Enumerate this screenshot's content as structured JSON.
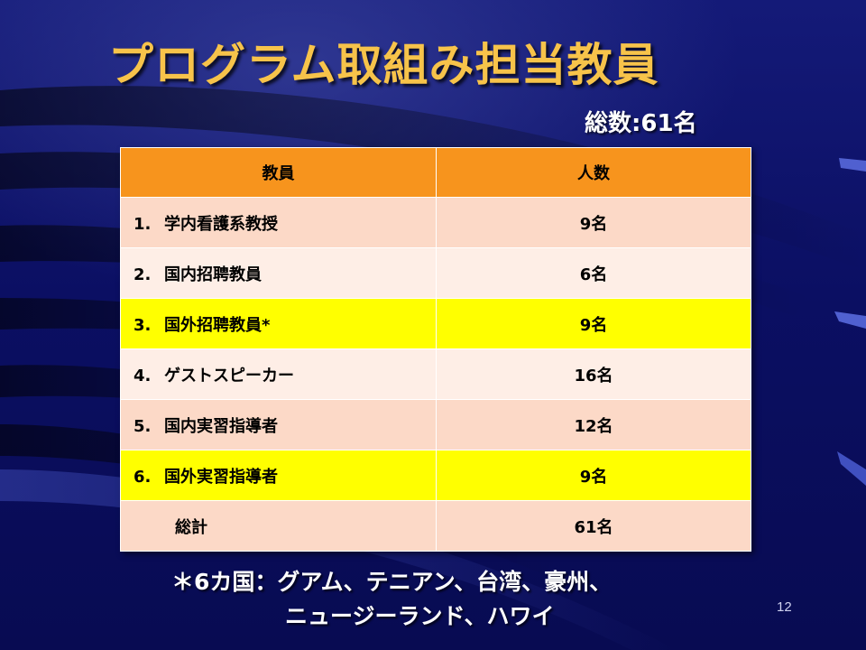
{
  "slide": {
    "title": "プログラム取組み担当教員",
    "total": "総数:61名",
    "table": {
      "headers": [
        "教員",
        "人数"
      ],
      "rows": [
        {
          "no": "1.",
          "label": "学内看護系教授",
          "count": "9名",
          "highlight": false
        },
        {
          "no": "2.",
          "label": "国内招聘教員",
          "count": "6名",
          "highlight": false
        },
        {
          "no": "3.",
          "label": "国外招聘教員*",
          "count": "9名",
          "highlight": true
        },
        {
          "no": "4.",
          "label": "ゲストスピーカー",
          "count": "16名",
          "highlight": false
        },
        {
          "no": "5.",
          "label": "国内実習指導者",
          "count": "12名",
          "highlight": false
        },
        {
          "no": "6.",
          "label": "国外実習指導者",
          "count": "9名",
          "highlight": true
        }
      ],
      "total_label": "総計",
      "total_count": "61名"
    },
    "footnote": {
      "line1": "＊6カ国：グアム、テニアン、台湾、豪州、",
      "line2": "ニュージーランド、ハワイ"
    },
    "page_number": "12"
  },
  "colors": {
    "background": "#0a0e5a",
    "title": "#f7c34a",
    "header": "#f7941d",
    "row_light": "#feeee6",
    "row_dark": "#fcd9c7",
    "highlight": "#ffff00"
  }
}
